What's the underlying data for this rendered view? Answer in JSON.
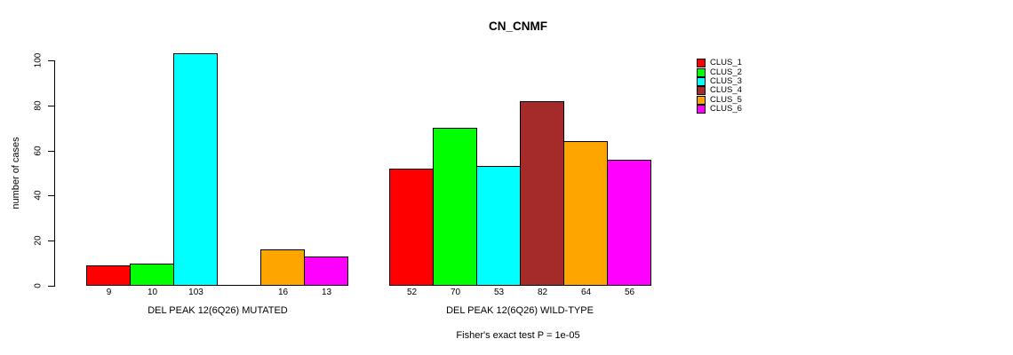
{
  "chart_data": {
    "type": "bar",
    "title": "CN_CNMF",
    "ylabel": "number of cases",
    "xlabel": "",
    "ylim": [
      0,
      100
    ],
    "yticks": [
      0,
      20,
      40,
      60,
      80,
      100
    ],
    "grid": false,
    "legend_position": "right",
    "footer": "Fisher's exact test P = 1e-05",
    "series": [
      {
        "name": "CLUS_1",
        "color": "#FF0000"
      },
      {
        "name": "CLUS_2",
        "color": "#00FF00"
      },
      {
        "name": "CLUS_3",
        "color": "#00FFFF"
      },
      {
        "name": "CLUS_4",
        "color": "#A52A2A"
      },
      {
        "name": "CLUS_5",
        "color": "#FFA500"
      },
      {
        "name": "CLUS_6",
        "color": "#FF00FF"
      }
    ],
    "groups": [
      {
        "label": "DEL PEAK 12(6Q26) MUTATED",
        "values": [
          9,
          10,
          103,
          0,
          16,
          13
        ]
      },
      {
        "label": "DEL PEAK 12(6Q26) WILD-TYPE",
        "values": [
          52,
          70,
          53,
          82,
          64,
          56
        ]
      }
    ],
    "bar_value_labels_shown": true
  }
}
